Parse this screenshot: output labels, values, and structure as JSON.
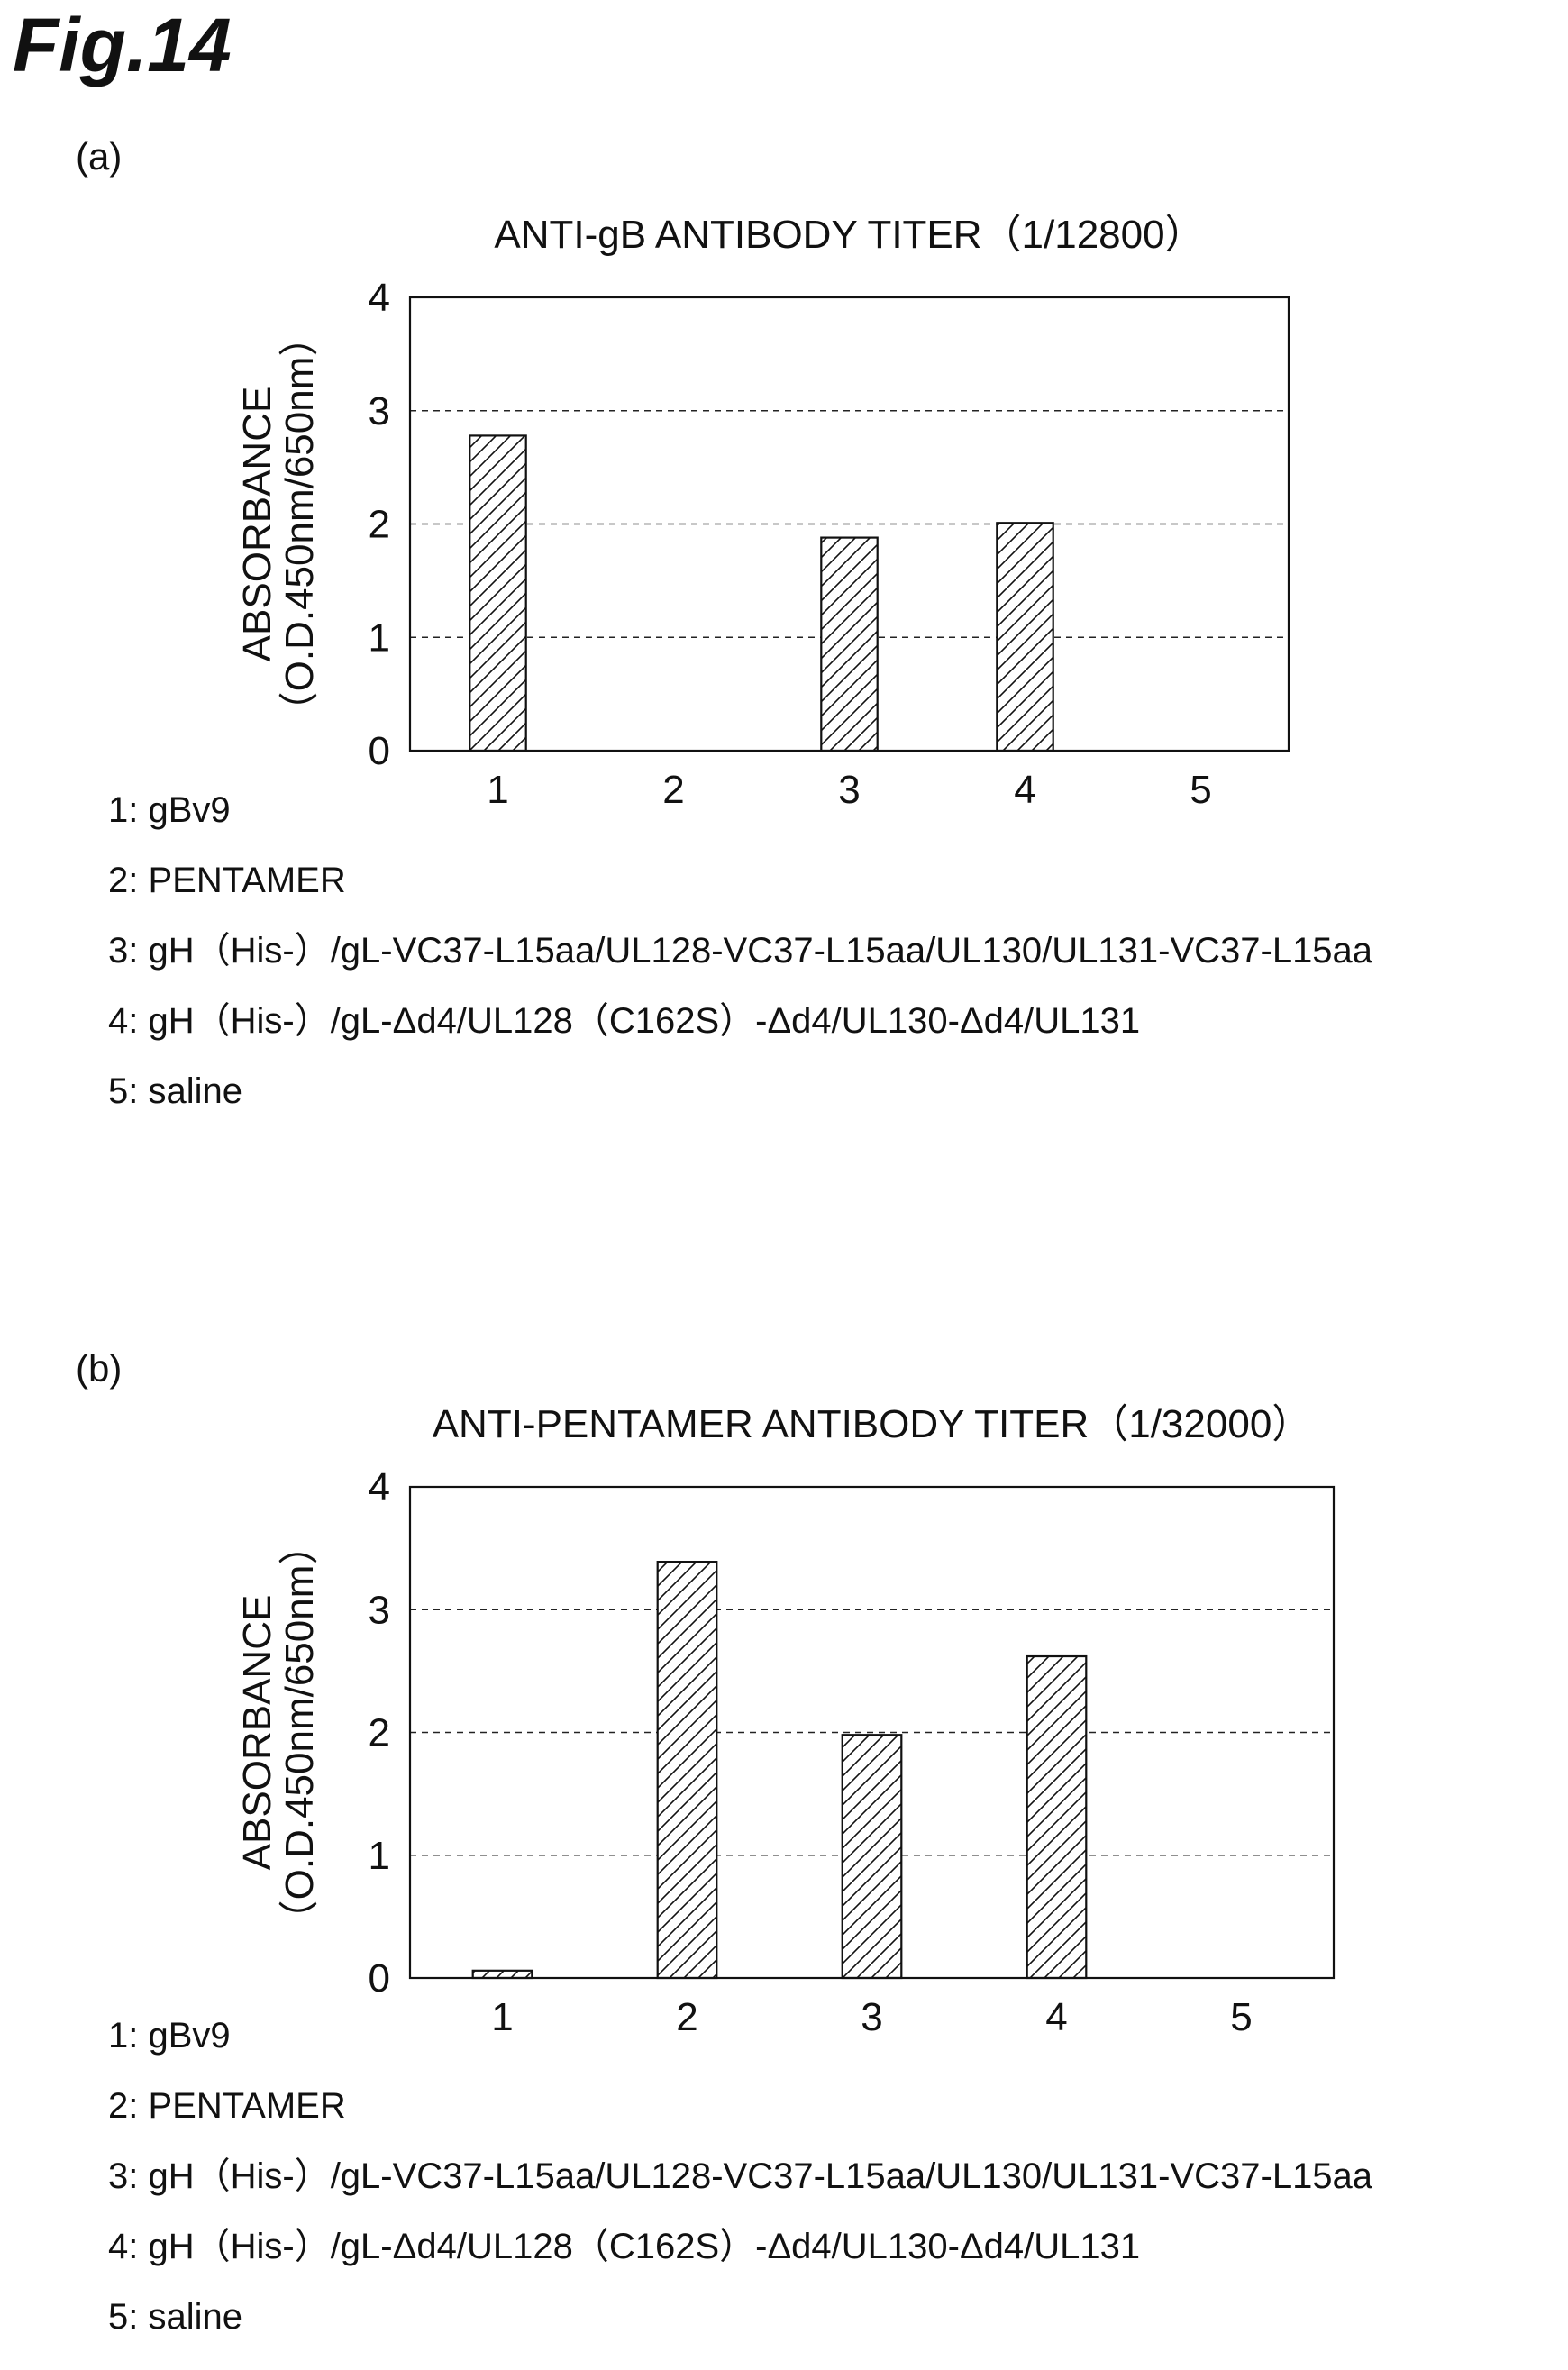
{
  "figure_title": "Fig.14",
  "panels": [
    {
      "label": "(a)",
      "legend": [
        "1: gBv9",
        "2: PENTAMER",
        "3: gH（His-）/gL-VC37-L15aa/UL128-VC37-L15aa/UL130/UL131-VC37-L15aa",
        "4: gH（His-）/gL-Δd4/UL128（C162S）-Δd4/UL130-Δd4/UL131",
        "5: saline"
      ]
    },
    {
      "label": "(b)",
      "legend": [
        "1: gBv9",
        "2: PENTAMER",
        "3: gH（His-）/gL-VC37-L15aa/UL128-VC37-L15aa/UL130/UL131-VC37-L15aa",
        "4: gH（His-）/gL-Δd4/UL128（C162S）-Δd4/UL130-Δd4/UL131",
        "5: saline"
      ]
    }
  ],
  "chart_data": [
    {
      "type": "bar",
      "title": "ANTI-gB ANTIBODY TITER（1/12800）",
      "ylabel": [
        "ABSORBANCE",
        "（O.D.450nm/650nm）"
      ],
      "xlabel": "",
      "categories": [
        "1",
        "2",
        "3",
        "4",
        "5"
      ],
      "values": [
        2.78,
        0.0,
        1.88,
        2.01,
        0.0
      ],
      "ylim": [
        0,
        4
      ],
      "yticks": [
        0,
        1,
        2,
        3,
        4
      ],
      "grid": "dashed horizontal",
      "bar_fill": "diagonal hatch",
      "colors": {
        "stroke": "#111111",
        "fill": "#ffffff"
      }
    },
    {
      "type": "bar",
      "title": "ANTI-PENTAMER ANTIBODY TITER（1/32000）",
      "ylabel": [
        "ABSORBANCE",
        "（O.D.450nm/650nm）"
      ],
      "xlabel": "",
      "categories": [
        "1",
        "2",
        "3",
        "4",
        "5"
      ],
      "values": [
        0.06,
        3.39,
        1.98,
        2.62,
        0.0
      ],
      "ylim": [
        0,
        4
      ],
      "yticks": [
        0,
        1,
        2,
        3,
        4
      ],
      "grid": "dashed horizontal",
      "bar_fill": "diagonal hatch",
      "colors": {
        "stroke": "#111111",
        "fill": "#ffffff"
      }
    }
  ]
}
